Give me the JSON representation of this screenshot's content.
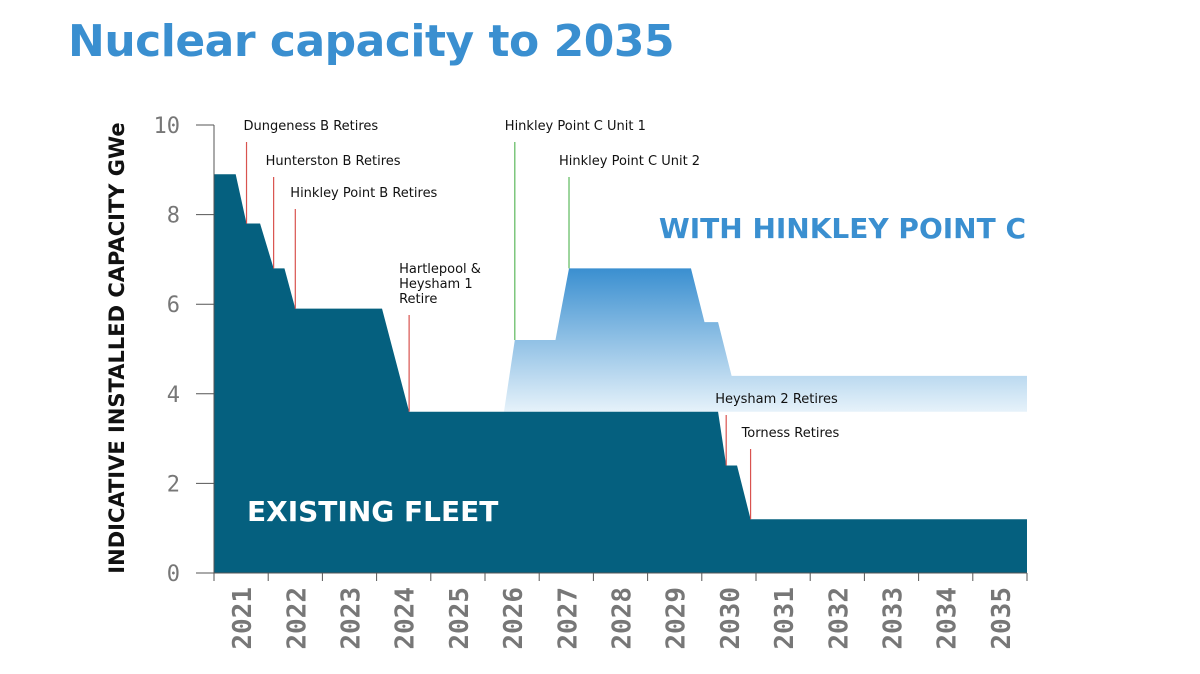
{
  "title": "Nuclear capacity to 2035",
  "colors": {
    "title": "#3a8fd0",
    "existing_fleet": "#05607f",
    "hinkley_top": "#3a8fd0",
    "hinkley_bottom": "#e6f2fa",
    "retire_marker": "#d9534f",
    "hinkley_marker": "#5cb85c"
  },
  "chart_data": {
    "type": "area",
    "ylabel": "INDICATIVE INSTALLED CAPACITY GWe",
    "ylim": [
      0,
      10
    ],
    "yticks": [
      "0",
      "2",
      "4",
      "6",
      "8",
      "10"
    ],
    "xlim": [
      2020.5,
      2035.5
    ],
    "xticks": [
      "2021",
      "2022",
      "2023",
      "2024",
      "2025",
      "2026",
      "2027",
      "2028",
      "2029",
      "2030",
      "2031",
      "2032",
      "2033",
      "2034",
      "2035"
    ],
    "series": [
      {
        "name": "EXISTING FLEET",
        "points": [
          [
            2020.5,
            8.9
          ],
          [
            2020.9,
            8.9
          ],
          [
            2021.1,
            7.8
          ],
          [
            2021.35,
            7.8
          ],
          [
            2021.6,
            6.8
          ],
          [
            2021.8,
            6.8
          ],
          [
            2022.0,
            5.9
          ],
          [
            2023.6,
            5.9
          ],
          [
            2024.1,
            3.6
          ],
          [
            2029.8,
            3.6
          ],
          [
            2029.95,
            2.4
          ],
          [
            2030.15,
            2.4
          ],
          [
            2030.4,
            1.2
          ],
          [
            2035.5,
            1.2
          ]
        ]
      },
      {
        "name": "WITH HINKLEY POINT C",
        "points": [
          [
            2025.85,
            3.6
          ],
          [
            2026.05,
            5.2
          ],
          [
            2026.8,
            5.2
          ],
          [
            2027.05,
            6.8
          ],
          [
            2029.3,
            6.8
          ],
          [
            2029.55,
            5.6
          ],
          [
            2029.8,
            5.6
          ],
          [
            2030.05,
            4.4
          ],
          [
            2035.5,
            4.4
          ]
        ]
      }
    ],
    "annotations": [
      {
        "text": [
          "Dungeness B Retires"
        ],
        "x": 2021.1,
        "y": 7.8,
        "kind": "retire"
      },
      {
        "text": [
          "Hunterston B Retires"
        ],
        "x": 2021.6,
        "y": 6.8,
        "kind": "retire"
      },
      {
        "text": [
          "Hinkley Point B Retires"
        ],
        "x": 2022.0,
        "y": 5.9,
        "kind": "retire"
      },
      {
        "text": [
          "Hartlepool &",
          "Heysham 1",
          "Retire"
        ],
        "x": 2024.1,
        "y": 3.6,
        "kind": "retire"
      },
      {
        "text": [
          "Hinkley Point C Unit 1"
        ],
        "x": 2026.05,
        "y": 5.2,
        "kind": "hinkley"
      },
      {
        "text": [
          "Hinkley Point C Unit 2"
        ],
        "x": 2027.05,
        "y": 6.8,
        "kind": "hinkley"
      },
      {
        "text": [
          "Heysham 2 Retires"
        ],
        "x": 2029.95,
        "y": 2.4,
        "kind": "retire"
      },
      {
        "text": [
          "Torness Retires"
        ],
        "x": 2030.4,
        "y": 1.2,
        "kind": "retire"
      }
    ]
  }
}
